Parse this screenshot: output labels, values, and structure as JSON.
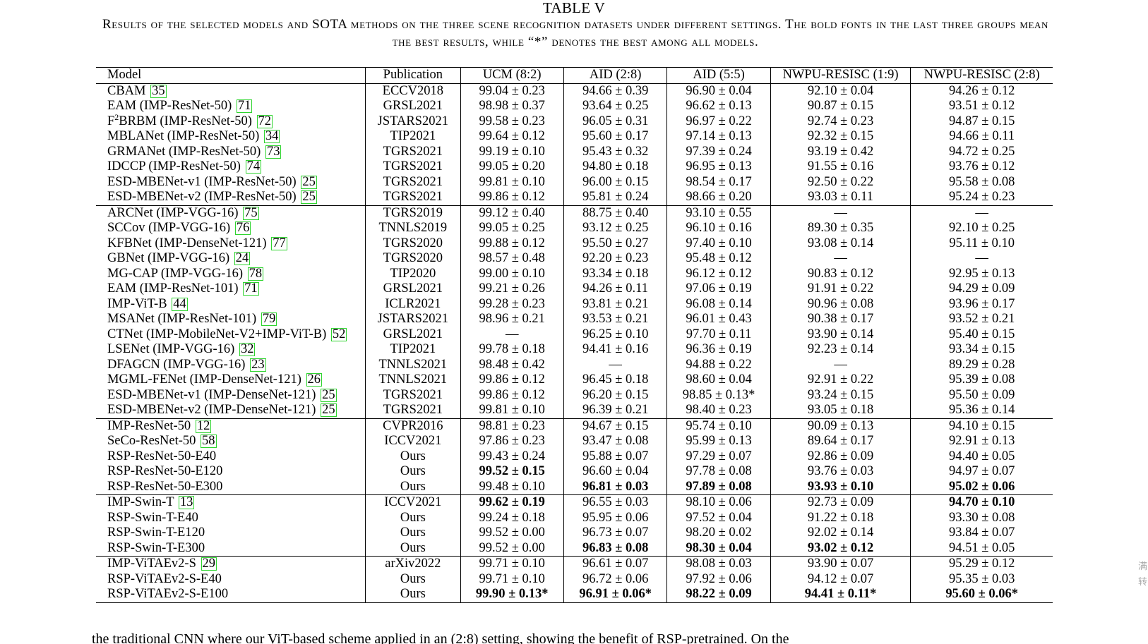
{
  "table_label": "TABLE V",
  "caption": "Results of the selected models and SOTA methods on the three scene recognition datasets under different settings. The bold fonts in the last three groups mean the best results, while “*” denotes the best among all models.",
  "columns": [
    "Model",
    "Publication",
    "UCM (8:2)",
    "AID (2:8)",
    "AID (5:5)",
    "NWPU-RESISC (1:9)",
    "NWPU-RESISC (2:8)"
  ],
  "groups": [
    [
      {
        "name": "CBAM",
        "sup": "",
        "suffix": "",
        "ref": "35",
        "pub": "ECCV2018",
        "vals": [
          "99.04 ± 0.23",
          "94.66 ± 0.39",
          "96.90 ± 0.04",
          "92.10 ± 0.04",
          "94.26 ± 0.12"
        ],
        "bold": []
      },
      {
        "name": "EAM (IMP-ResNet-50)",
        "sup": "",
        "suffix": "",
        "ref": "71",
        "pub": "GRSL2021",
        "vals": [
          "98.98 ± 0.37",
          "93.64 ± 0.25",
          "96.62 ± 0.13",
          "90.87 ± 0.15",
          "93.51 ± 0.12"
        ],
        "bold": []
      },
      {
        "name": "F",
        "sup": "2",
        "suffix": "BRBM (IMP-ResNet-50)",
        "ref": "72",
        "pub": "JSTARS2021",
        "vals": [
          "99.58 ± 0.23",
          "96.05 ± 0.31",
          "96.97 ± 0.22",
          "92.74 ± 0.23",
          "94.87 ± 0.15"
        ],
        "bold": []
      },
      {
        "name": "MBLANet (IMP-ResNet-50)",
        "sup": "",
        "suffix": "",
        "ref": "34",
        "pub": "TIP2021",
        "vals": [
          "99.64 ± 0.12",
          "95.60 ± 0.17",
          "97.14 ± 0.13",
          "92.32 ± 0.15",
          "94.66 ± 0.11"
        ],
        "bold": []
      },
      {
        "name": "GRMANet (IMP-ResNet-50)",
        "sup": "",
        "suffix": "",
        "ref": "73",
        "pub": "TGRS2021",
        "vals": [
          "99.19 ± 0.10",
          "95.43 ± 0.32",
          "97.39 ± 0.24",
          "93.19 ± 0.42",
          "94.72 ± 0.25"
        ],
        "bold": []
      },
      {
        "name": "IDCCP (IMP-ResNet-50)",
        "sup": "",
        "suffix": "",
        "ref": "74",
        "pub": "TGRS2021",
        "vals": [
          "99.05 ± 0.20",
          "94.80 ± 0.18",
          "96.95 ± 0.13",
          "91.55 ± 0.16",
          "93.76 ± 0.12"
        ],
        "bold": []
      },
      {
        "name": "ESD-MBENet-v1 (IMP-ResNet-50)",
        "sup": "",
        "suffix": "",
        "ref": "25",
        "pub": "TGRS2021",
        "vals": [
          "99.81 ± 0.10",
          "96.00 ± 0.15",
          "98.54 ± 0.17",
          "92.50 ± 0.22",
          "95.58 ± 0.08"
        ],
        "bold": []
      },
      {
        "name": "ESD-MBENet-v2 (IMP-ResNet-50)",
        "sup": "",
        "suffix": "",
        "ref": "25",
        "pub": "TGRS2021",
        "vals": [
          "99.86 ± 0.12",
          "95.81 ± 0.24",
          "98.66 ± 0.20",
          "93.03 ± 0.11",
          "95.24 ± 0.23"
        ],
        "bold": []
      }
    ],
    [
      {
        "name": "ARCNet (IMP-VGG-16)",
        "sup": "",
        "suffix": "",
        "ref": "75",
        "pub": "TGRS2019",
        "vals": [
          "99.12 ± 0.40",
          "88.75 ± 0.40",
          "93.10 ± 0.55",
          "—",
          "—"
        ],
        "bold": []
      },
      {
        "name": "SCCov (IMP-VGG-16)",
        "sup": "",
        "suffix": "",
        "ref": "76",
        "pub": "TNNLS2019",
        "vals": [
          "99.05 ± 0.25",
          "93.12 ± 0.25",
          "96.10 ± 0.16",
          "89.30 ± 0.35",
          "92.10 ± 0.25"
        ],
        "bold": []
      },
      {
        "name": "KFBNet (IMP-DenseNet-121)",
        "sup": "",
        "suffix": "",
        "ref": "77",
        "pub": "TGRS2020",
        "vals": [
          "99.88 ± 0.12",
          "95.50 ± 0.27",
          "97.40 ± 0.10",
          "93.08 ± 0.14",
          "95.11 ± 0.10"
        ],
        "bold": []
      },
      {
        "name": "GBNet (IMP-VGG-16)",
        "sup": "",
        "suffix": "",
        "ref": "24",
        "pub": "TGRS2020",
        "vals": [
          "98.57 ± 0.48",
          "92.20 ± 0.23",
          "95.48 ± 0.12",
          "—",
          "—"
        ],
        "bold": []
      },
      {
        "name": "MG-CAP (IMP-VGG-16)",
        "sup": "",
        "suffix": "",
        "ref": "78",
        "pub": "TIP2020",
        "vals": [
          "99.00 ± 0.10",
          "93.34 ± 0.18",
          "96.12 ± 0.12",
          "90.83 ± 0.12",
          "92.95 ± 0.13"
        ],
        "bold": []
      },
      {
        "name": "EAM (IMP-ResNet-101)",
        "sup": "",
        "suffix": "",
        "ref": "71",
        "pub": "GRSL2021",
        "vals": [
          "99.21 ± 0.26",
          "94.26 ± 0.11",
          "97.06 ± 0.19",
          "91.91 ± 0.22",
          "94.29 ± 0.09"
        ],
        "bold": []
      },
      {
        "name": "IMP-ViT-B",
        "sup": "",
        "suffix": "",
        "ref": "44",
        "pub": "ICLR2021",
        "vals": [
          "99.28 ± 0.23",
          "93.81 ± 0.21",
          "96.08 ± 0.14",
          "90.96 ± 0.08",
          "93.96 ± 0.17"
        ],
        "bold": []
      },
      {
        "name": "MSANet (IMP-ResNet-101)",
        "sup": "",
        "suffix": "",
        "ref": "79",
        "pub": "JSTARS2021",
        "vals": [
          "98.96 ± 0.21",
          "93.53 ± 0.21",
          "96.01 ± 0.43",
          "90.38 ± 0.17",
          "93.52 ± 0.21"
        ],
        "bold": []
      },
      {
        "name": "CTNet (IMP-MobileNet-V2+IMP-ViT-B)",
        "sup": "",
        "suffix": "",
        "ref": "52",
        "pub": "GRSL2021",
        "vals": [
          "—",
          "96.25 ± 0.10",
          "97.70 ± 0.11",
          "93.90 ± 0.14",
          "95.40 ± 0.15"
        ],
        "bold": []
      },
      {
        "name": "LSENet (IMP-VGG-16)",
        "sup": "",
        "suffix": "",
        "ref": "32",
        "pub": "TIP2021",
        "vals": [
          "99.78 ± 0.18",
          "94.41 ± 0.16",
          "96.36 ± 0.19",
          "92.23 ± 0.14",
          "93.34 ± 0.15"
        ],
        "bold": []
      },
      {
        "name": "DFAGCN (IMP-VGG-16)",
        "sup": "",
        "suffix": "",
        "ref": "23",
        "pub": "TNNLS2021",
        "vals": [
          "98.48 ± 0.42",
          "—",
          "94.88 ± 0.22",
          "—",
          "89.29 ± 0.28"
        ],
        "bold": []
      },
      {
        "name": "MGML-FENet (IMP-DenseNet-121)",
        "sup": "",
        "suffix": "",
        "ref": "26",
        "pub": "TNNLS2021",
        "vals": [
          "99.86 ± 0.12",
          "96.45 ± 0.18",
          "98.60 ± 0.04",
          "92.91 ± 0.22",
          "95.39 ± 0.08"
        ],
        "bold": []
      },
      {
        "name": "ESD-MBENet-v1 (IMP-DenseNet-121)",
        "sup": "",
        "suffix": "",
        "ref": "25",
        "pub": "TGRS2021",
        "vals": [
          "99.86 ± 0.12",
          "96.20 ± 0.15",
          "98.85 ± 0.13*",
          "93.24 ± 0.15",
          "95.50 ± 0.09"
        ],
        "bold": []
      },
      {
        "name": "ESD-MBENet-v2 (IMP-DenseNet-121)",
        "sup": "",
        "suffix": "",
        "ref": "25",
        "pub": "TGRS2021",
        "vals": [
          "99.81 ± 0.10",
          "96.39 ± 0.21",
          "98.40 ± 0.23",
          "93.05 ± 0.18",
          "95.36 ± 0.14"
        ],
        "bold": []
      }
    ],
    [
      {
        "name": "IMP-ResNet-50",
        "sup": "",
        "suffix": "",
        "ref": "12",
        "pub": "CVPR2016",
        "vals": [
          "98.81 ± 0.23",
          "94.67 ± 0.15",
          "95.74 ± 0.10",
          "90.09 ± 0.13",
          "94.10 ± 0.15"
        ],
        "bold": []
      },
      {
        "name": "SeCo-ResNet-50",
        "sup": "",
        "suffix": "",
        "ref": "58",
        "pub": "ICCV2021",
        "vals": [
          "97.86 ± 0.23",
          "93.47 ± 0.08",
          "95.99 ± 0.13",
          "89.64 ± 0.17",
          "92.91 ± 0.13"
        ],
        "bold": []
      },
      {
        "name": "RSP-ResNet-50-E40",
        "sup": "",
        "suffix": "",
        "ref": "",
        "pub": "Ours",
        "vals": [
          "99.43 ± 0.24",
          "95.88 ± 0.07",
          "97.29 ± 0.07",
          "92.86 ± 0.09",
          "94.40 ± 0.05"
        ],
        "bold": []
      },
      {
        "name": "RSP-ResNet-50-E120",
        "sup": "",
        "suffix": "",
        "ref": "",
        "pub": "Ours",
        "vals": [
          "99.52 ± 0.15",
          "96.60 ± 0.04",
          "97.78 ± 0.08",
          "93.76 ± 0.03",
          "94.97 ± 0.07"
        ],
        "bold": [
          0
        ]
      },
      {
        "name": "RSP-ResNet-50-E300",
        "sup": "",
        "suffix": "",
        "ref": "",
        "pub": "Ours",
        "vals": [
          "99.48 ± 0.10",
          "96.81 ± 0.03",
          "97.89 ± 0.08",
          "93.93 ± 0.10",
          "95.02 ± 0.06"
        ],
        "bold": [
          1,
          2,
          3,
          4
        ]
      }
    ],
    [
      {
        "name": "IMP-Swin-T",
        "sup": "",
        "suffix": "",
        "ref": "13",
        "pub": "ICCV2021",
        "vals": [
          "99.62 ± 0.19",
          "96.55 ± 0.03",
          "98.10 ± 0.06",
          "92.73 ± 0.09",
          "94.70 ± 0.10"
        ],
        "bold": [
          0,
          4
        ]
      },
      {
        "name": "RSP-Swin-T-E40",
        "sup": "",
        "suffix": "",
        "ref": "",
        "pub": "Ours",
        "vals": [
          "99.24 ± 0.18",
          "95.95 ± 0.06",
          "97.52 ± 0.04",
          "91.22 ± 0.18",
          "93.30 ± 0.08"
        ],
        "bold": []
      },
      {
        "name": "RSP-Swin-T-E120",
        "sup": "",
        "suffix": "",
        "ref": "",
        "pub": "Ours",
        "vals": [
          "99.52 ± 0.00",
          "96.73 ± 0.07",
          "98.20 ± 0.02",
          "92.02 ± 0.14",
          "93.84 ± 0.07"
        ],
        "bold": []
      },
      {
        "name": "RSP-Swin-T-E300",
        "sup": "",
        "suffix": "",
        "ref": "",
        "pub": "Ours",
        "vals": [
          "99.52 ± 0.00",
          "96.83 ± 0.08",
          "98.30 ± 0.04",
          "93.02 ± 0.12",
          "94.51 ± 0.05"
        ],
        "bold": [
          1,
          2,
          3
        ]
      }
    ],
    [
      {
        "name": "IMP-ViTAEv2-S",
        "sup": "",
        "suffix": "",
        "ref": "29",
        "pub": "arXiv2022",
        "vals": [
          "99.71 ± 0.10",
          "96.61 ± 0.07",
          "98.08 ± 0.03",
          "93.90 ± 0.07",
          "95.29 ± 0.12"
        ],
        "bold": []
      },
      {
        "name": "RSP-ViTAEv2-S-E40",
        "sup": "",
        "suffix": "",
        "ref": "",
        "pub": "Ours",
        "vals": [
          "99.71 ± 0.10",
          "96.72 ± 0.06",
          "97.92 ± 0.06",
          "94.12 ± 0.07",
          "95.35 ± 0.03"
        ],
        "bold": []
      },
      {
        "name": "RSP-ViTAEv2-S-E100",
        "sup": "",
        "suffix": "",
        "ref": "",
        "pub": "Ours",
        "vals": [
          "99.90 ± 0.13*",
          "96.91 ± 0.06*",
          "98.22 ± 0.09",
          "94.41 ± 0.11*",
          "95.60 ± 0.06*"
        ],
        "bold": [
          0,
          1,
          2,
          3,
          4
        ]
      }
    ]
  ],
  "body_text": "the traditional CNN where our ViT-based scheme applied in an (2:8) setting, showing the benefit of RSP-pretrained. On the",
  "side_mark": "满转"
}
